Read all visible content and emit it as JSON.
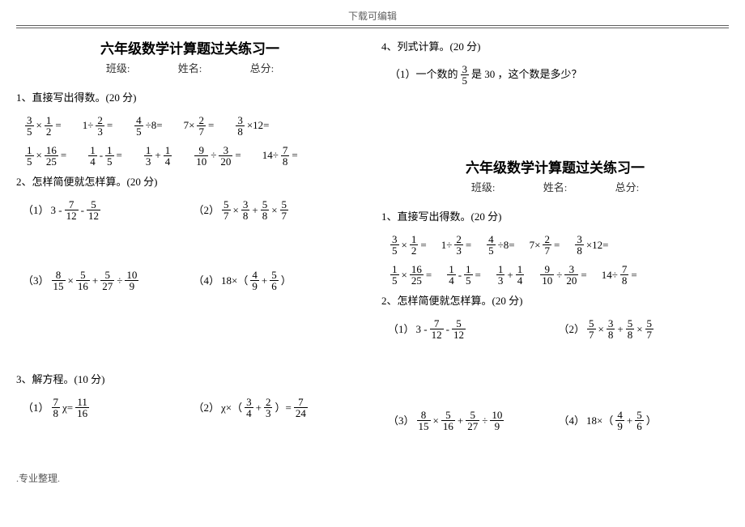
{
  "page": {
    "topHeader": "下载可编辑",
    "footer": ".专业整理.",
    "title": "六年级数学计算题过关练习一",
    "sublabels": {
      "class": "班级:",
      "name": "姓名:",
      "score": "总分:"
    }
  },
  "sections": {
    "s1": "1、直接写出得数。(20 分)",
    "s2": "2、怎样简便就怎样算。(20 分)",
    "s3": "3、解方程。(10 分)",
    "s4": "4、列式计算。(20 分)"
  },
  "fractions": {
    "f_3_5": {
      "n": "3",
      "d": "5"
    },
    "f_1_2": {
      "n": "1",
      "d": "2"
    },
    "f_2_3": {
      "n": "2",
      "d": "3"
    },
    "f_4_5": {
      "n": "4",
      "d": "5"
    },
    "f_2_7": {
      "n": "2",
      "d": "7"
    },
    "f_3_8": {
      "n": "3",
      "d": "8"
    },
    "f_1_5": {
      "n": "1",
      "d": "5"
    },
    "f_16_25": {
      "n": "16",
      "d": "25"
    },
    "f_1_4": {
      "n": "1",
      "d": "4"
    },
    "f_1_3": {
      "n": "1",
      "d": "3"
    },
    "f_9_10": {
      "n": "9",
      "d": "10"
    },
    "f_3_20": {
      "n": "3",
      "d": "20"
    },
    "f_7_8": {
      "n": "7",
      "d": "8"
    },
    "f_7_12": {
      "n": "7",
      "d": "12"
    },
    "f_5_12": {
      "n": "5",
      "d": "12"
    },
    "f_5_7": {
      "n": "5",
      "d": "7"
    },
    "f_5_8": {
      "n": "5",
      "d": "8"
    },
    "f_8_15": {
      "n": "8",
      "d": "15"
    },
    "f_5_16": {
      "n": "5",
      "d": "16"
    },
    "f_5_27": {
      "n": "5",
      "d": "27"
    },
    "f_10_9": {
      "n": "10",
      "d": "9"
    },
    "f_4_9": {
      "n": "4",
      "d": "9"
    },
    "f_5_6": {
      "n": "5",
      "d": "6"
    },
    "f_11_16": {
      "n": "11",
      "d": "16"
    },
    "f_3_4": {
      "n": "3",
      "d": "4"
    },
    "f_7_24": {
      "n": "7",
      "d": "24"
    }
  },
  "text": {
    "seven_times": "7×",
    "times12": "×12=",
    "div8": "÷8=",
    "one_div": "1÷",
    "eq": "=",
    "eqsp": " =",
    "minus": " - ",
    "plus": " + ",
    "times": " × ",
    "div": " ÷ ",
    "fourteen_div": "14÷",
    "p1": "（1）",
    "p2": "（2）",
    "p3": "（3）",
    "p4": "（4）",
    "three_minus": "3  - ",
    "eighteen_times": "18×（ ",
    "close_paren": " ）",
    "chi_eq": "χ=",
    "chi_times_open": "χ×（ ",
    "close_eq": " ）= ",
    "word_problem_before": "（1）一个数的",
    "word_problem_after": "是 30 ，这个数是多少？"
  }
}
